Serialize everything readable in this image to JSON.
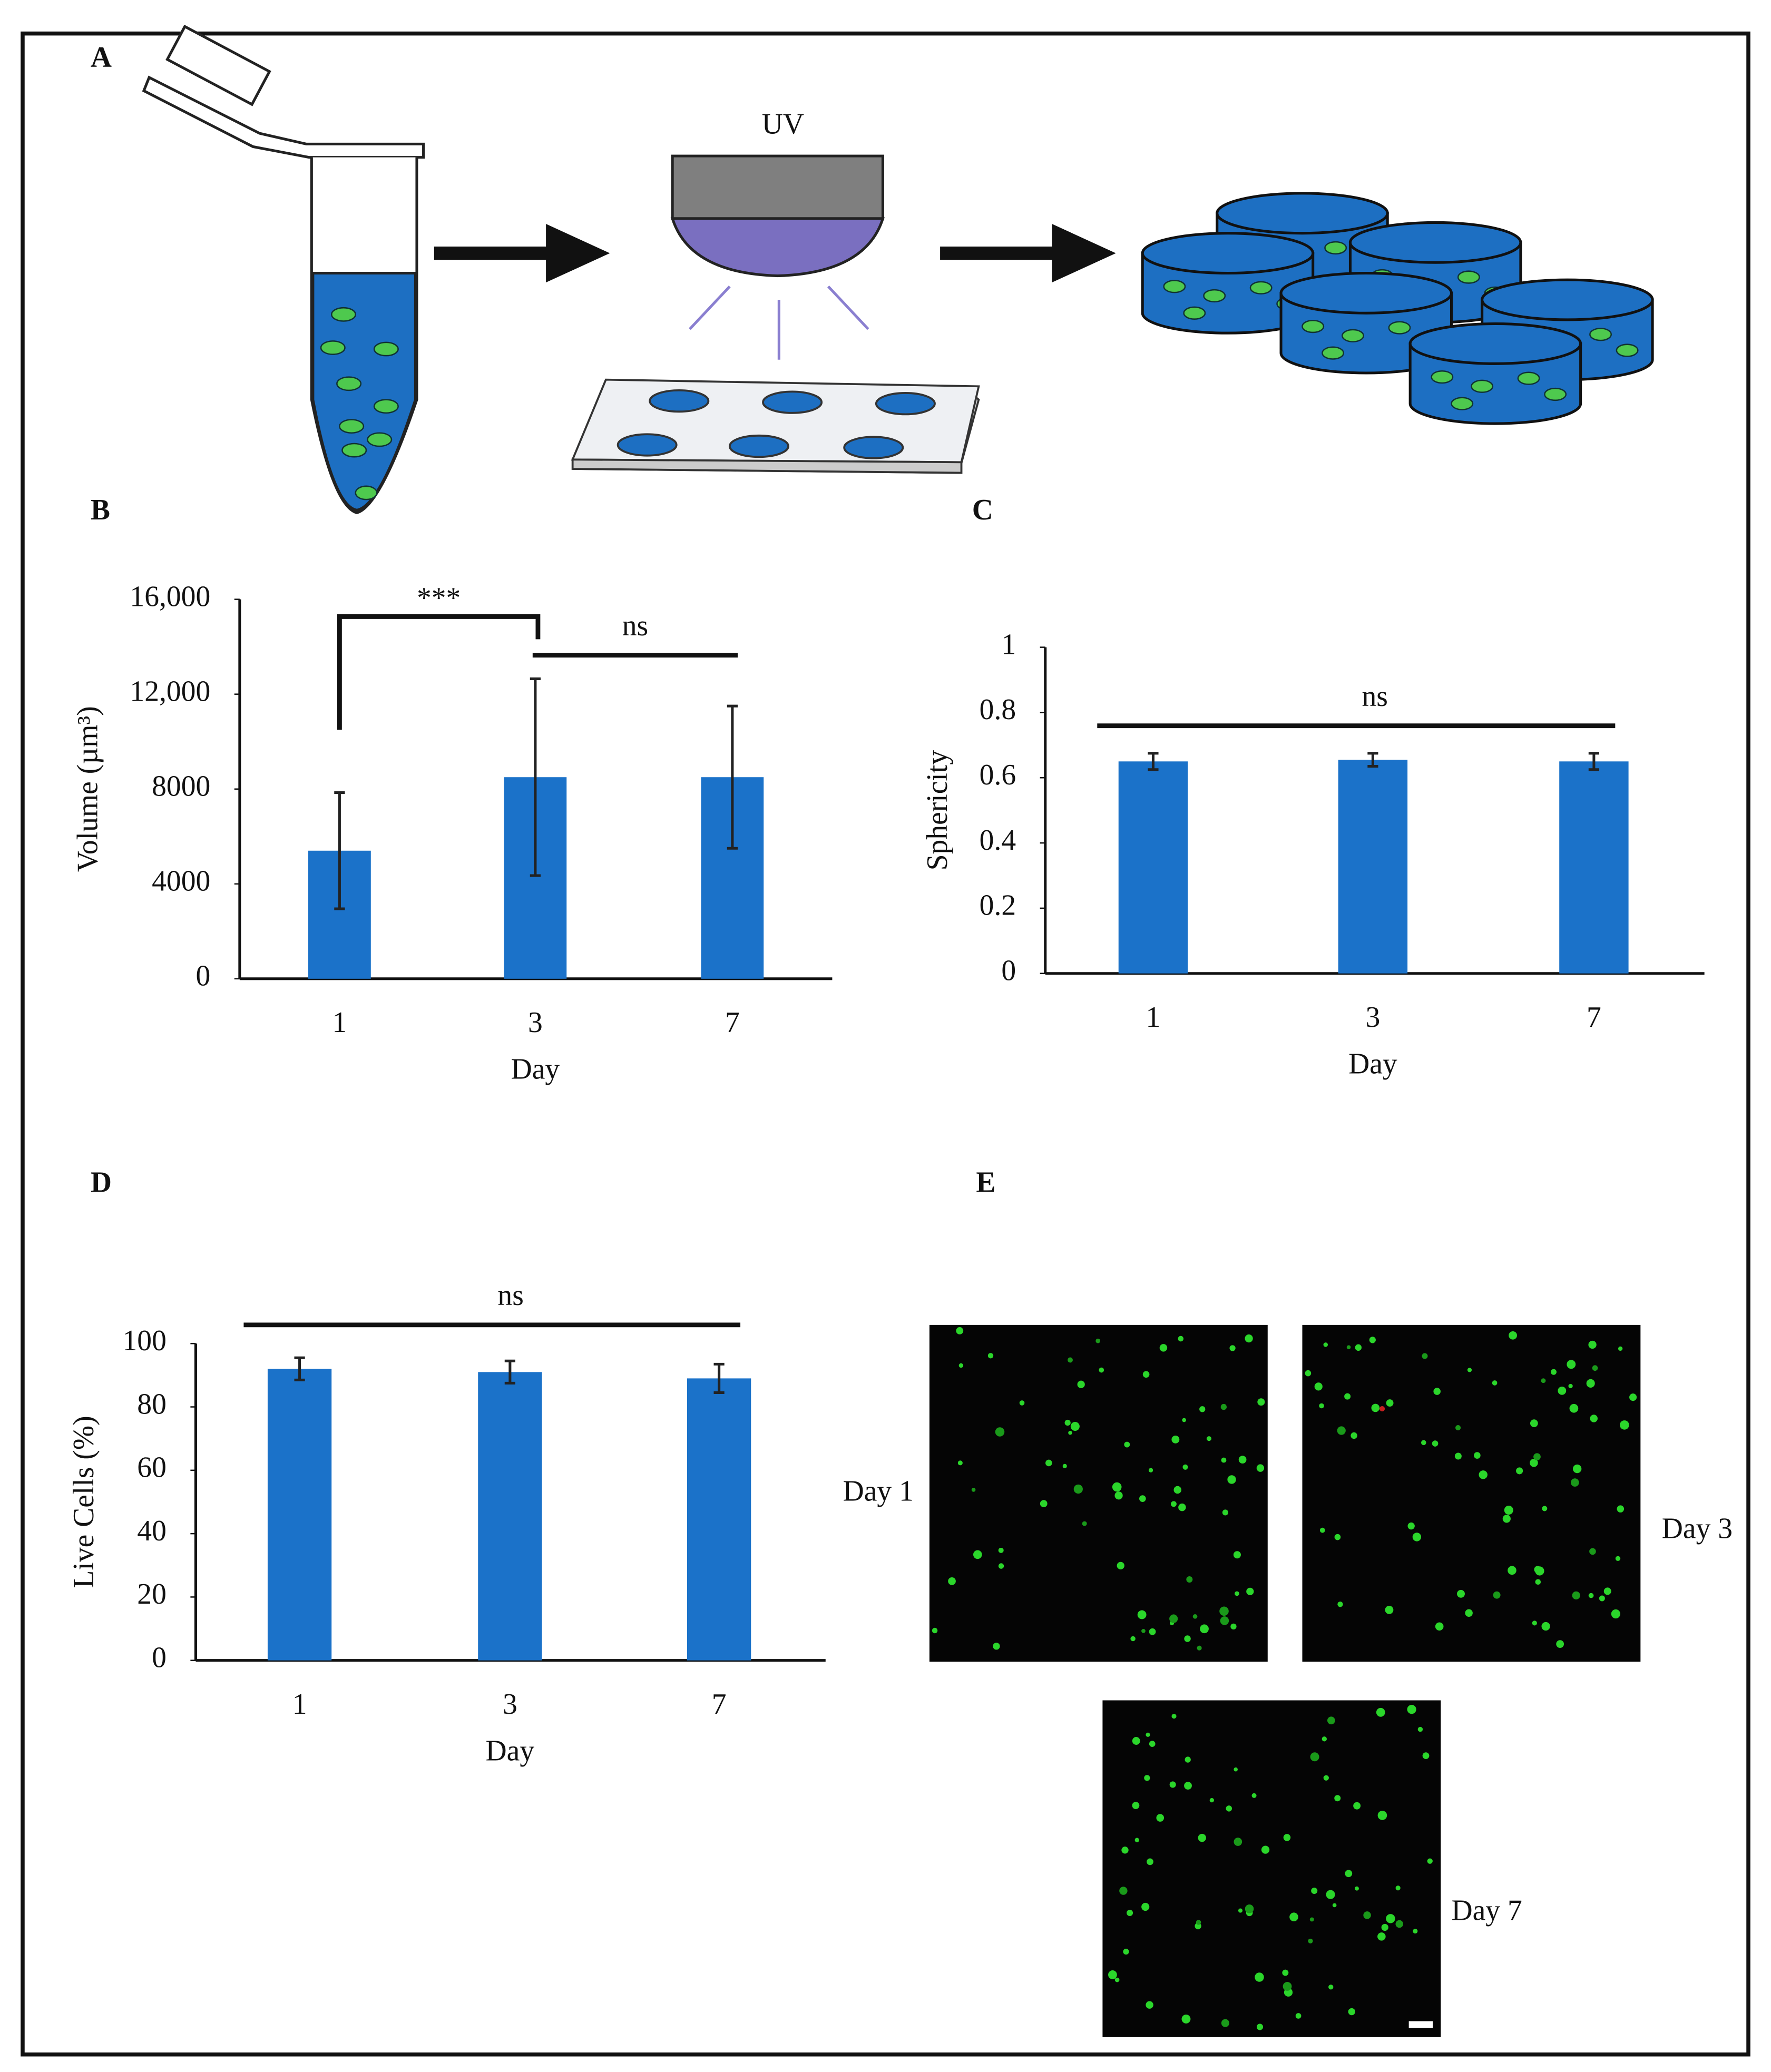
{
  "panel_labels": [
    "A",
    "B",
    "C",
    "D",
    "E"
  ],
  "diagram": {
    "lamp_label": "UV"
  },
  "micrographs": {
    "labels": [
      "Day 1",
      "Day 3",
      "Day 7"
    ]
  },
  "chart_data": [
    {
      "type": "bar",
      "x_label": "Day",
      "y_label": "Volume (µm³)",
      "categories": [
        "1",
        "3",
        "7"
      ],
      "values": [
        5400,
        8500,
        8500
      ],
      "errors": [
        2450,
        4150,
        3000
      ],
      "color": "#1b72c9",
      "ylim": [
        0,
        16000
      ],
      "yticks": [
        0,
        4000,
        8000,
        {
          "value": 12000,
          "label": "12,000"
        },
        {
          "value": 16000,
          "label": "16,000"
        }
      ],
      "annotations": [
        {
          "text": "***",
          "between": [
            "1",
            "3"
          ]
        },
        {
          "text": "ns",
          "between": [
            "3",
            "7"
          ]
        }
      ]
    },
    {
      "type": "bar",
      "x_label": "Day",
      "y_label": "Sphericity",
      "categories": [
        "1",
        "3",
        "7"
      ],
      "values": [
        0.65,
        0.655,
        0.65
      ],
      "errors": [
        0.025,
        0.02,
        0.025
      ],
      "color": "#1b72c9",
      "ylim": [
        0,
        1
      ],
      "yticks": [
        0,
        0.2,
        0.4,
        0.6,
        0.8,
        1
      ],
      "annotations": [
        {
          "text": "ns",
          "between": [
            "1",
            "7"
          ]
        }
      ]
    },
    {
      "type": "bar",
      "x_label": "Day",
      "y_label": "Live Cells (%)",
      "categories": [
        "1",
        "3",
        "7"
      ],
      "values": [
        92,
        91,
        89
      ],
      "errors": [
        3.5,
        3.5,
        4.5
      ],
      "color": "#1b72c9",
      "ylim": [
        0,
        100
      ],
      "yticks": [
        0,
        20,
        40,
        60,
        80,
        100
      ],
      "annotations": [
        {
          "text": "ns",
          "between": [
            "1",
            "7"
          ]
        }
      ]
    }
  ]
}
